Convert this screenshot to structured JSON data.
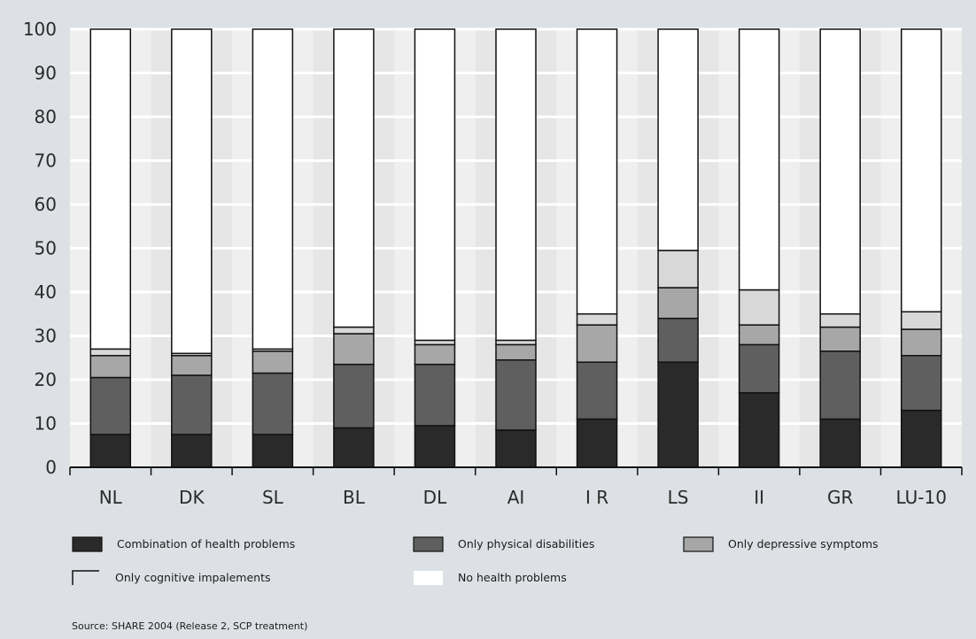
{
  "chart_data": {
    "type": "bar",
    "stacked": true,
    "title": "",
    "xlabel": "",
    "ylabel": "",
    "ylim": [
      0,
      100
    ],
    "yticks": [
      0,
      10,
      20,
      30,
      40,
      50,
      60,
      70,
      80,
      90,
      100
    ],
    "categories": [
      "NL",
      "DK",
      "SL",
      "BL",
      "DL",
      "AI",
      "I R",
      "LS",
      "II",
      "GR",
      "LU-10"
    ],
    "series": [
      {
        "name": "Combination of health problems",
        "color": "#2a2a2a",
        "values": [
          7.5,
          7.5,
          7.5,
          9,
          9.5,
          8.5,
          11,
          24,
          17,
          11,
          13
        ]
      },
      {
        "name": "Only physical disabilities",
        "color": "#5f5f5f",
        "values": [
          13,
          13.5,
          14,
          14.5,
          14,
          16,
          13,
          10,
          11,
          15.5,
          12.5
        ]
      },
      {
        "name": "Only depressive symptoms",
        "color": "#a7a7a7",
        "values": [
          5,
          4.5,
          5,
          7,
          4.5,
          3.5,
          8.5,
          7,
          4.5,
          5.5,
          6
        ]
      },
      {
        "name": "Only cognitive impalements",
        "color": "#d8d8d8",
        "values": [
          1.5,
          0.5,
          0.5,
          1.5,
          1,
          1,
          2.5,
          8.5,
          8,
          3,
          4
        ]
      },
      {
        "name": "No health problems",
        "color": "#ffffff",
        "values": [
          73,
          74,
          73,
          68,
          71,
          71,
          65,
          50.5,
          59.5,
          65,
          64.5
        ]
      }
    ],
    "grid": true,
    "legend_position": "bottom",
    "source": "Source: SHARE 2004 (Release 2, SCP treatment)"
  }
}
